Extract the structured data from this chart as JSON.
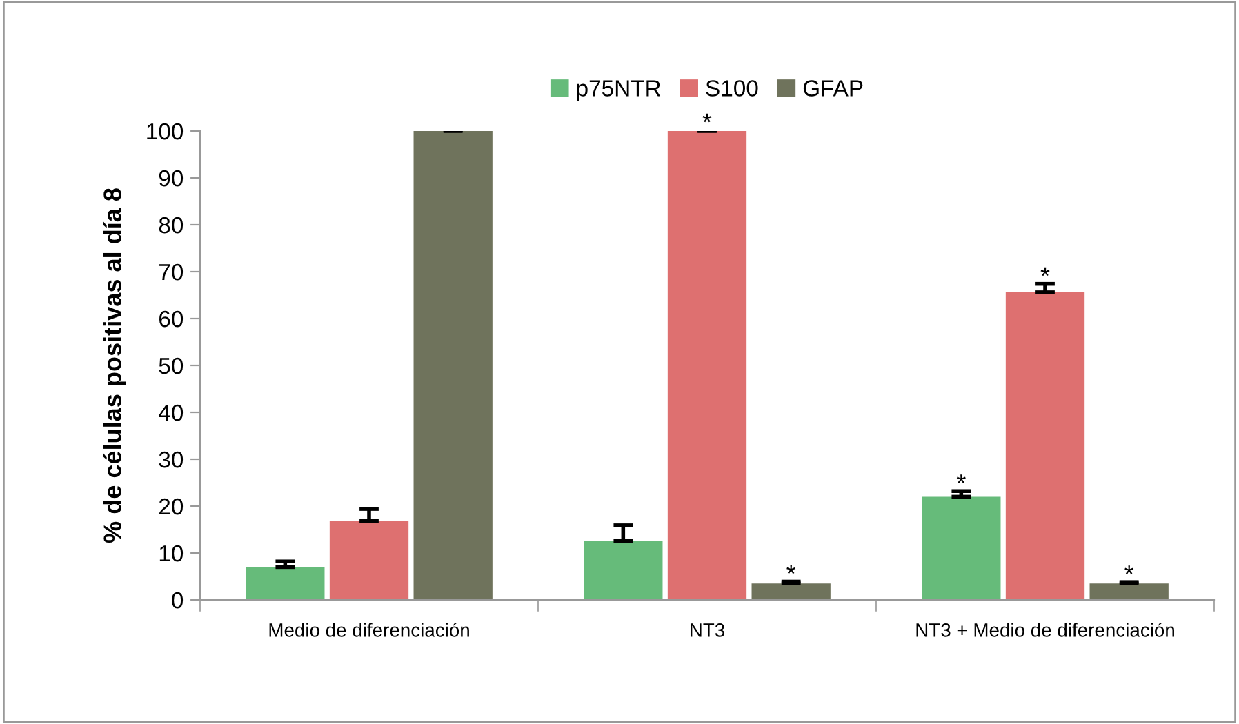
{
  "chart_data": {
    "type": "bar",
    "ylabel": "% de células positivas al día 8",
    "categories": [
      "Medio de diferenciación",
      "NT3",
      "NT3 + Medio de diferenciación"
    ],
    "series": [
      {
        "name": "p75NTR",
        "color": "#66bb7a",
        "values": [
          7.0,
          12.6,
          22.0
        ],
        "errors": [
          [
            7.0,
            8.2
          ],
          [
            12.6,
            15.9
          ],
          [
            22.0,
            23.2
          ]
        ],
        "value_labels": [
          null,
          null,
          "*"
        ]
      },
      {
        "name": "S100",
        "color": "#de7070",
        "values": [
          16.8,
          100,
          65.6
        ],
        "errors": [
          [
            16.8,
            19.4
          ],
          [
            100,
            100.2
          ],
          [
            65.6,
            67.4
          ]
        ],
        "value_labels": [
          null,
          "*",
          "*"
        ]
      },
      {
        "name": "GFAP",
        "color": "#6f735c",
        "values": [
          100,
          3.5,
          3.5
        ],
        "errors": [
          [
            100,
            100.2
          ],
          [
            3.5,
            3.9
          ],
          [
            3.5,
            3.8
          ]
        ],
        "value_labels": [
          null,
          "*",
          "*"
        ]
      }
    ],
    "ylim": [
      0,
      100
    ],
    "yticks": [
      0,
      10,
      20,
      30,
      40,
      50,
      60,
      70,
      80,
      90,
      100
    ],
    "grid": false,
    "legend": "top"
  }
}
